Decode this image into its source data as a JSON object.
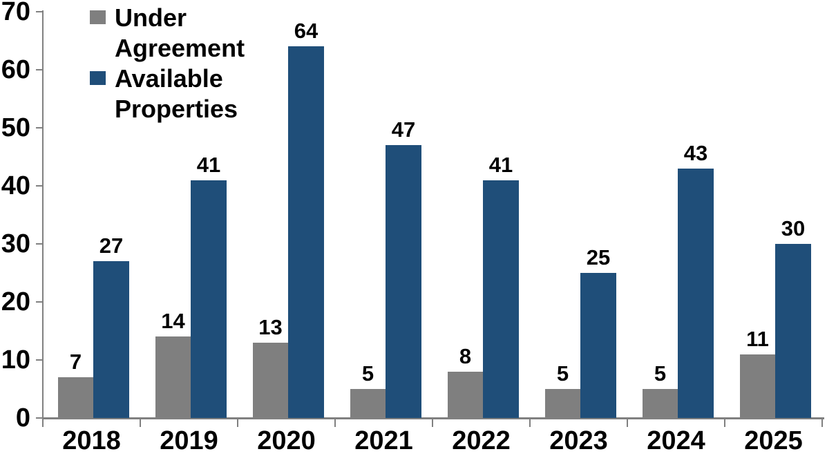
{
  "chart_data": {
    "type": "bar",
    "title": "",
    "xlabel": "",
    "ylabel": "",
    "categories": [
      "2018",
      "2019",
      "2020",
      "2021",
      "2022",
      "2023",
      "2024",
      "2025"
    ],
    "series": [
      {
        "name": "Under Agreement",
        "color": "#7F7F7F",
        "values": [
          7,
          14,
          13,
          5,
          8,
          5,
          5,
          11
        ]
      },
      {
        "name": "Available Properties",
        "color": "#1F4E79",
        "values": [
          27,
          41,
          64,
          47,
          41,
          25,
          43,
          30
        ]
      }
    ],
    "ylim": [
      0,
      70
    ],
    "ytick_step": 10,
    "ytick_labels": [
      "0",
      "10",
      "20",
      "30",
      "40",
      "50",
      "60",
      "70"
    ],
    "grid": false,
    "value_labels": true,
    "legend_position": "top-left-inside",
    "axis_color": "#808080",
    "text_color": "#000000",
    "background_color": "#FFFFFF"
  }
}
